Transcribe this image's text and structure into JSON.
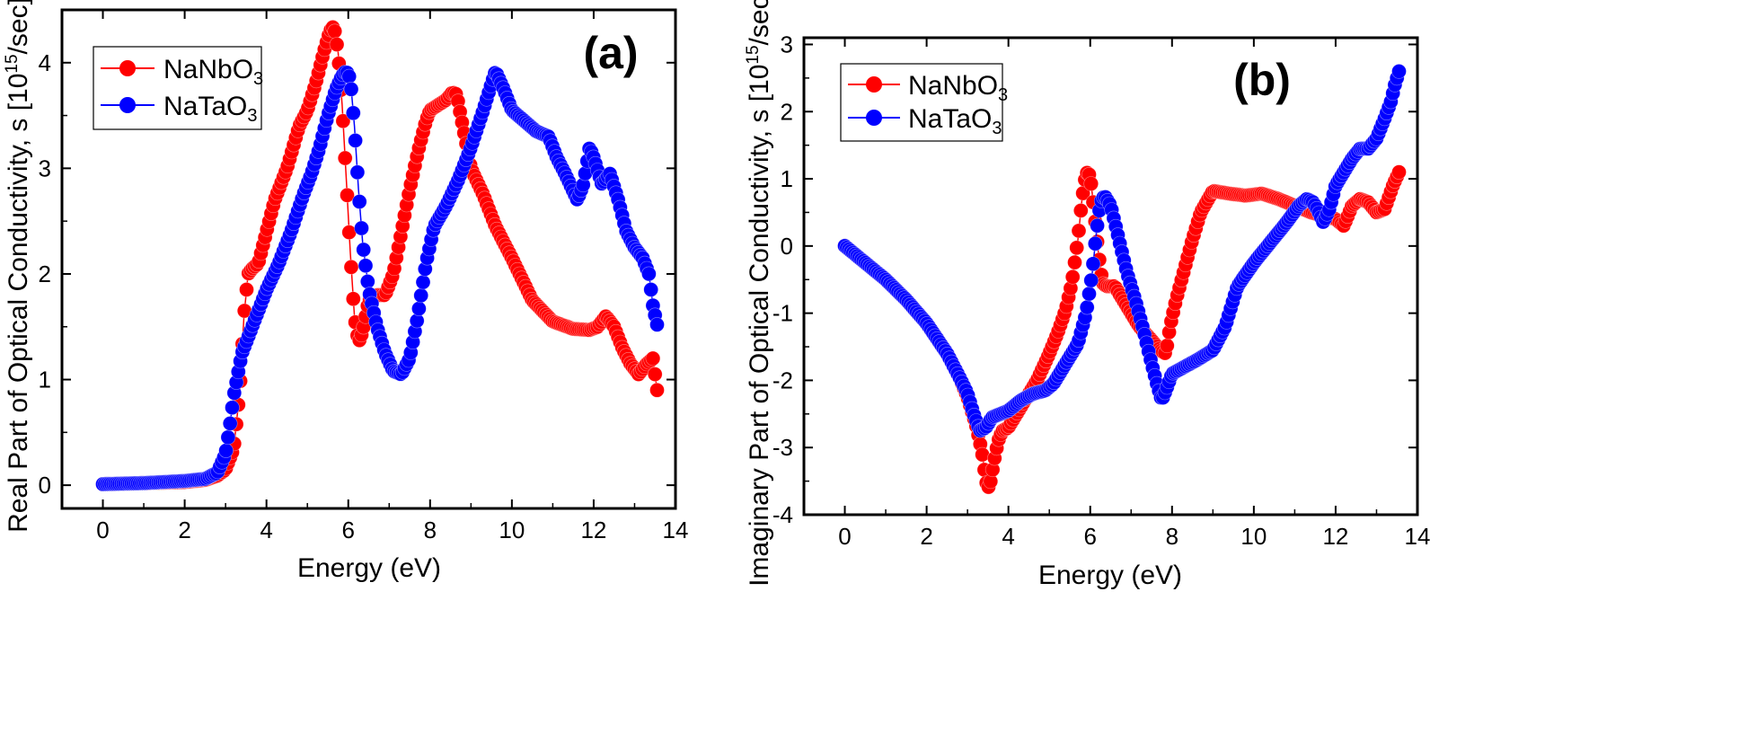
{
  "chart_data": [
    {
      "type": "scatter",
      "panel_label": "(a)",
      "xlabel": "Energy (eV)",
      "ylabel_text": "Real Part of Optical Conductivity, s [10",
      "ylabel_exp": "15",
      "ylabel_unit": "/sec]",
      "xlim": [
        -1,
        14
      ],
      "ylim": [
        -0.22,
        4.5
      ],
      "xticks": [
        0,
        2,
        4,
        6,
        8,
        10,
        12,
        14
      ],
      "yticks": [
        0,
        1,
        2,
        3,
        4
      ],
      "legend_position": "top-left",
      "series": [
        {
          "name": "NaNbO3",
          "label_base": "NaNbO",
          "label_sub": "3",
          "color": "#ff0000",
          "x": [
            0,
            1,
            2,
            2.5,
            2.8,
            3.0,
            3.2,
            3.35,
            3.45,
            3.55,
            3.65,
            3.8,
            4.0,
            4.2,
            4.5,
            4.8,
            5.0,
            5.2,
            5.4,
            5.55,
            5.65,
            5.75,
            5.85,
            5.95,
            6.05,
            6.15,
            6.25,
            6.35,
            6.5,
            6.7,
            6.9,
            7.1,
            7.3,
            7.5,
            7.7,
            7.9,
            8.0,
            8.2,
            8.4,
            8.55,
            8.65,
            8.8,
            9.0,
            9.3,
            9.6,
            10.0,
            10.5,
            11.0,
            11.5,
            11.9,
            12.1,
            12.3,
            12.5,
            12.7,
            12.9,
            13.1,
            13.3,
            13.45,
            13.55
          ],
          "y": [
            0.01,
            0.02,
            0.03,
            0.05,
            0.09,
            0.15,
            0.35,
            0.9,
            1.6,
            2.0,
            2.05,
            2.1,
            2.4,
            2.7,
            3.0,
            3.4,
            3.55,
            3.8,
            4.1,
            4.3,
            4.35,
            4.1,
            3.6,
            2.9,
            2.2,
            1.6,
            1.35,
            1.45,
            1.75,
            1.8,
            1.8,
            2.0,
            2.4,
            2.8,
            3.15,
            3.45,
            3.55,
            3.6,
            3.65,
            3.72,
            3.7,
            3.4,
            3.0,
            2.75,
            2.45,
            2.15,
            1.75,
            1.55,
            1.48,
            1.47,
            1.5,
            1.6,
            1.5,
            1.3,
            1.15,
            1.05,
            1.15,
            1.2,
            0.9
          ]
        },
        {
          "name": "NaTaO3",
          "label_base": "NaTaO",
          "label_sub": "3",
          "color": "#0000ff",
          "x": [
            0,
            1,
            2,
            2.5,
            2.8,
            3.0,
            3.1,
            3.2,
            3.3,
            3.4,
            3.6,
            3.8,
            4.0,
            4.3,
            4.6,
            4.9,
            5.1,
            5.3,
            5.5,
            5.7,
            5.85,
            5.95,
            6.05,
            6.15,
            6.25,
            6.35,
            6.5,
            6.7,
            6.9,
            7.1,
            7.3,
            7.5,
            7.7,
            7.9,
            8.1,
            8.4,
            8.7,
            9.0,
            9.3,
            9.5,
            9.6,
            9.8,
            10.0,
            10.3,
            10.6,
            10.9,
            11.1,
            11.3,
            11.6,
            11.75,
            11.9,
            12.0,
            12.2,
            12.4,
            12.6,
            12.8,
            13.0,
            13.2,
            13.35,
            13.45,
            13.55
          ],
          "y": [
            0.01,
            0.02,
            0.04,
            0.06,
            0.12,
            0.3,
            0.55,
            0.85,
            1.05,
            1.25,
            1.45,
            1.65,
            1.85,
            2.1,
            2.4,
            2.75,
            2.95,
            3.2,
            3.5,
            3.75,
            3.88,
            3.92,
            3.85,
            3.4,
            2.8,
            2.3,
            1.85,
            1.5,
            1.25,
            1.08,
            1.05,
            1.2,
            1.6,
            2.1,
            2.45,
            2.65,
            2.9,
            3.2,
            3.55,
            3.8,
            3.92,
            3.75,
            3.55,
            3.45,
            3.35,
            3.3,
            3.1,
            2.95,
            2.7,
            2.85,
            3.2,
            3.1,
            2.85,
            2.95,
            2.7,
            2.4,
            2.25,
            2.15,
            2.0,
            1.7,
            1.52
          ]
        }
      ]
    },
    {
      "type": "scatter",
      "panel_label": "(b)",
      "xlabel": "Energy (eV)",
      "ylabel_text": "Imaginary Part of Optical Conductivity, s [10",
      "ylabel_exp": "15",
      "ylabel_unit": "/sec]",
      "xlim": [
        -1,
        14
      ],
      "ylim": [
        -4,
        3.1
      ],
      "xticks": [
        0,
        2,
        4,
        6,
        8,
        10,
        12,
        14
      ],
      "yticks": [
        -4,
        -3,
        -2,
        -1,
        0,
        1,
        2,
        3
      ],
      "legend_position": "top-left",
      "series": [
        {
          "name": "NaNbO3",
          "label_base": "NaNbO",
          "label_sub": "3",
          "color": "#ff0000",
          "x": [
            0,
            0.5,
            1.0,
            1.5,
            2.0,
            2.5,
            2.8,
            3.0,
            3.2,
            3.35,
            3.45,
            3.5,
            3.55,
            3.65,
            3.75,
            3.85,
            4.0,
            4.2,
            4.4,
            4.7,
            5.0,
            5.2,
            5.4,
            5.55,
            5.7,
            5.8,
            5.9,
            6.0,
            6.1,
            6.2,
            6.3,
            6.4,
            6.6,
            6.9,
            7.2,
            7.5,
            7.7,
            7.85,
            7.95,
            8.1,
            8.3,
            8.5,
            8.7,
            9.0,
            9.4,
            9.8,
            10.2,
            10.6,
            11.0,
            11.4,
            11.7,
            12.0,
            12.2,
            12.4,
            12.6,
            12.8,
            13.0,
            13.2,
            13.4,
            13.55
          ],
          "y": [
            0,
            -0.25,
            -0.5,
            -0.8,
            -1.15,
            -1.6,
            -1.95,
            -2.25,
            -2.65,
            -3.05,
            -3.5,
            -3.6,
            -3.55,
            -3.2,
            -2.9,
            -2.75,
            -2.7,
            -2.5,
            -2.3,
            -2.0,
            -1.6,
            -1.3,
            -0.95,
            -0.55,
            0.1,
            0.7,
            1.1,
            1.05,
            0.5,
            -0.1,
            -0.55,
            -0.6,
            -0.6,
            -0.9,
            -1.2,
            -1.4,
            -1.55,
            -1.6,
            -1.2,
            -0.8,
            -0.35,
            0.1,
            0.5,
            0.82,
            0.78,
            0.75,
            0.78,
            0.7,
            0.6,
            0.5,
            0.45,
            0.4,
            0.3,
            0.6,
            0.7,
            0.65,
            0.5,
            0.55,
            0.9,
            1.1
          ]
        },
        {
          "name": "NaTaO3",
          "label_base": "NaTaO",
          "label_sub": "3",
          "color": "#0000ff",
          "x": [
            0,
            0.5,
            1.0,
            1.5,
            2.0,
            2.5,
            2.8,
            3.0,
            3.15,
            3.3,
            3.45,
            3.6,
            3.8,
            4.0,
            4.3,
            4.6,
            4.9,
            5.1,
            5.3,
            5.5,
            5.7,
            5.9,
            6.05,
            6.15,
            6.25,
            6.35,
            6.5,
            6.7,
            6.9,
            7.1,
            7.3,
            7.5,
            7.65,
            7.75,
            7.85,
            8.0,
            8.3,
            8.6,
            9.0,
            9.3,
            9.6,
            10.0,
            10.4,
            10.8,
            11.1,
            11.3,
            11.45,
            11.55,
            11.7,
            11.85,
            12.0,
            12.2,
            12.4,
            12.6,
            12.8,
            13.0,
            13.2,
            13.35,
            13.45,
            13.55
          ],
          "y": [
            0,
            -0.25,
            -0.5,
            -0.8,
            -1.15,
            -1.6,
            -1.95,
            -2.2,
            -2.5,
            -2.75,
            -2.7,
            -2.55,
            -2.5,
            -2.45,
            -2.3,
            -2.2,
            -2.15,
            -2.05,
            -1.85,
            -1.65,
            -1.45,
            -1.0,
            -0.4,
            0.2,
            0.65,
            0.75,
            0.6,
            0.1,
            -0.4,
            -0.8,
            -1.25,
            -1.75,
            -2.1,
            -2.3,
            -2.15,
            -1.9,
            -1.8,
            -1.7,
            -1.55,
            -1.2,
            -0.6,
            -0.25,
            0.05,
            0.35,
            0.6,
            0.7,
            0.65,
            0.55,
            0.35,
            0.55,
            0.9,
            1.1,
            1.3,
            1.45,
            1.45,
            1.6,
            1.9,
            2.15,
            2.4,
            2.6
          ]
        }
      ]
    }
  ]
}
